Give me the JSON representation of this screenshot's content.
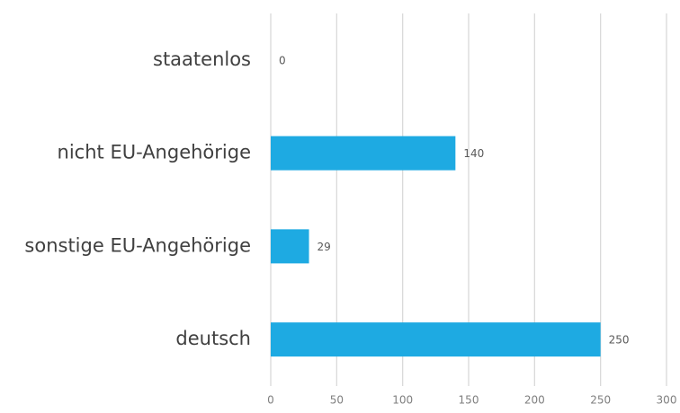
{
  "chart_data": {
    "type": "hbar",
    "categories": [
      "staatenlos",
      "nicht EU-Angehörige",
      "sonstige EU-Angehörige",
      "deutsch"
    ],
    "values": [
      0,
      140,
      29,
      250
    ],
    "color": "#1eaae2",
    "xlim": [
      0,
      300
    ],
    "xticks": [
      0,
      50,
      100,
      150,
      200,
      250,
      300
    ],
    "grid": true
  }
}
